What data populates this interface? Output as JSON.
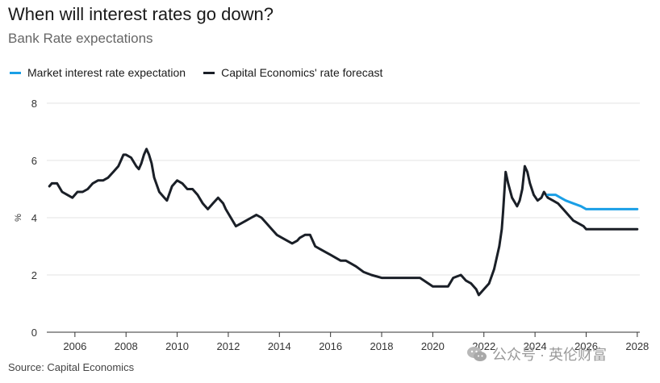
{
  "header": {
    "title": "When will interest rates go down?",
    "subtitle": "Bank Rate expectations"
  },
  "source": "Source: Capital Economics",
  "watermark": "公众号 · 英伦财富",
  "colors": {
    "market": "#1a9fe6",
    "forecast": "#1a1f27",
    "grid": "#e3e3e3",
    "axis": "#333333"
  },
  "chart_data": {
    "type": "line",
    "ylabel": "%",
    "ylim": [
      0,
      8
    ],
    "xlim": [
      2004.9,
      2028.1
    ],
    "yticks": [
      0,
      2,
      4,
      6,
      8
    ],
    "xticks": [
      2006,
      2008,
      2010,
      2012,
      2014,
      2016,
      2018,
      2020,
      2022,
      2024,
      2026,
      2028
    ],
    "grid": true,
    "legend_position": "top-left",
    "series": [
      {
        "name": "Market interest rate expectation",
        "color": "#1a9fe6",
        "x": [
          2024.5,
          2024.8,
          2025.0,
          2025.2,
          2025.5,
          2025.8,
          2026.0,
          2026.5,
          2027.0,
          2027.5,
          2028.0
        ],
        "y": [
          4.8,
          4.8,
          4.7,
          4.6,
          4.5,
          4.4,
          4.3,
          4.3,
          4.3,
          4.3,
          4.3
        ]
      },
      {
        "name": "Capital Economics' rate forecast",
        "color": "#1a1f27",
        "x": [
          2005.0,
          2005.1,
          2005.3,
          2005.5,
          2005.7,
          2005.9,
          2006.1,
          2006.3,
          2006.5,
          2006.7,
          2006.9,
          2007.1,
          2007.3,
          2007.5,
          2007.7,
          2007.8,
          2007.9,
          2008.0,
          2008.2,
          2008.4,
          2008.5,
          2008.6,
          2008.7,
          2008.8,
          2008.9,
          2009.0,
          2009.1,
          2009.3,
          2009.5,
          2009.6,
          2009.8,
          2010.0,
          2010.2,
          2010.4,
          2010.6,
          2010.8,
          2011.0,
          2011.2,
          2011.4,
          2011.6,
          2011.8,
          2011.9,
          2012.1,
          2012.3,
          2012.5,
          2012.7,
          2012.9,
          2013.1,
          2013.3,
          2013.5,
          2013.7,
          2013.9,
          2014.1,
          2014.3,
          2014.5,
          2014.7,
          2014.8,
          2015.0,
          2015.2,
          2015.4,
          2015.6,
          2015.8,
          2016.0,
          2016.2,
          2016.4,
          2016.6,
          2016.8,
          2017.0,
          2017.3,
          2017.6,
          2018.0,
          2018.5,
          2019.0,
          2019.5,
          2020.0,
          2020.3,
          2020.6,
          2020.8,
          2021.1,
          2021.3,
          2021.5,
          2021.7,
          2021.8,
          2022.0,
          2022.2,
          2022.4,
          2022.5,
          2022.6,
          2022.7,
          2022.75,
          2022.85,
          2022.95,
          2023.1,
          2023.3,
          2023.4,
          2023.5,
          2023.6,
          2023.7,
          2023.8,
          2023.95,
          2024.1,
          2024.25,
          2024.35,
          2024.5,
          2024.7,
          2024.9,
          2025.1,
          2025.3,
          2025.5,
          2025.7,
          2025.9,
          2026.0,
          2026.5,
          2027.0,
          2027.5,
          2028.0
        ],
        "y": [
          5.1,
          5.2,
          5.2,
          4.9,
          4.8,
          4.7,
          4.9,
          4.9,
          5.0,
          5.2,
          5.3,
          5.3,
          5.4,
          5.6,
          5.8,
          6.0,
          6.2,
          6.2,
          6.1,
          5.8,
          5.7,
          5.9,
          6.2,
          6.4,
          6.2,
          5.9,
          5.4,
          4.9,
          4.7,
          4.6,
          5.1,
          5.3,
          5.2,
          5.0,
          5.0,
          4.8,
          4.5,
          4.3,
          4.5,
          4.7,
          4.5,
          4.3,
          4.0,
          3.7,
          3.8,
          3.9,
          4.0,
          4.1,
          4.0,
          3.8,
          3.6,
          3.4,
          3.3,
          3.2,
          3.1,
          3.2,
          3.3,
          3.4,
          3.4,
          3.0,
          2.9,
          2.8,
          2.7,
          2.6,
          2.5,
          2.5,
          2.4,
          2.3,
          2.1,
          2.0,
          1.9,
          1.9,
          1.9,
          1.9,
          1.6,
          1.6,
          1.6,
          1.9,
          2.0,
          1.8,
          1.7,
          1.5,
          1.3,
          1.5,
          1.7,
          2.2,
          2.6,
          3.0,
          3.6,
          4.2,
          5.6,
          5.2,
          4.7,
          4.4,
          4.6,
          5.0,
          5.8,
          5.6,
          5.2,
          4.8,
          4.6,
          4.7,
          4.9,
          4.7,
          4.6,
          4.5,
          4.3,
          4.1,
          3.9,
          3.8,
          3.7,
          3.6,
          3.6,
          3.6,
          3.6,
          3.6
        ]
      }
    ]
  }
}
